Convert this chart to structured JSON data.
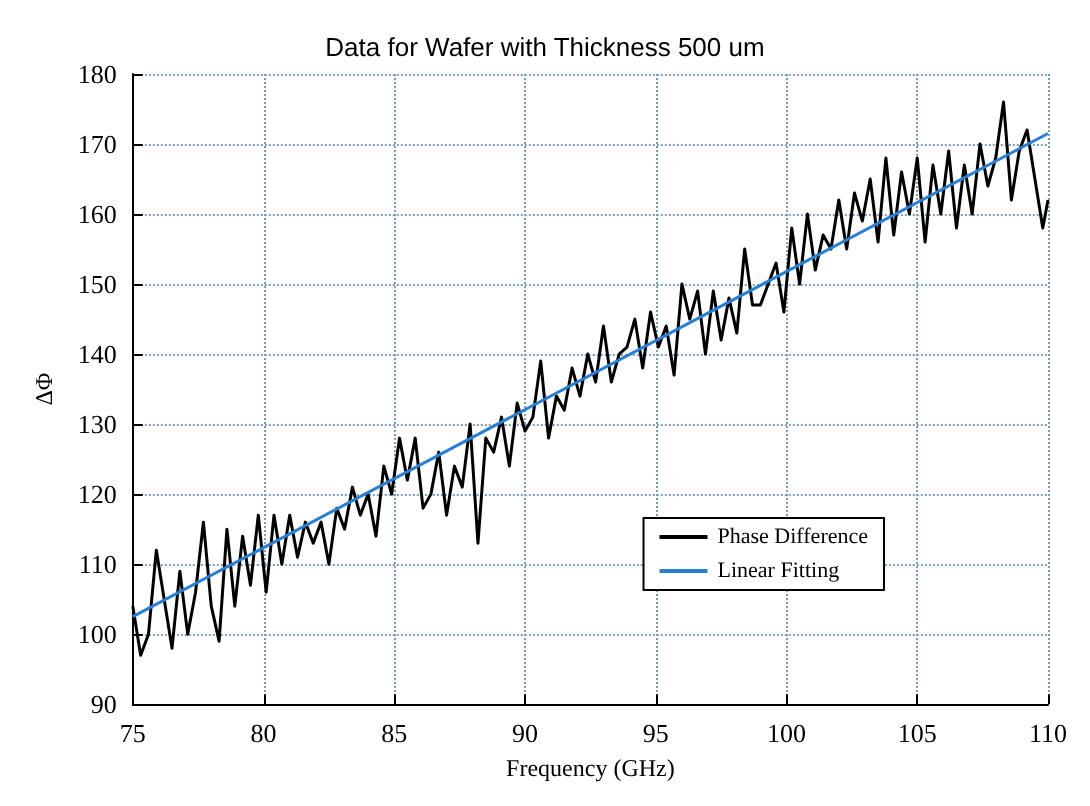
{
  "chart_data": {
    "type": "line",
    "title": "Data for Wafer with Thickness 500 um",
    "xlabel": "Frequency (GHz)",
    "ylabel": "ΔΦ",
    "xlim": [
      75,
      110
    ],
    "xticks": [
      75,
      80,
      85,
      90,
      95,
      100,
      105,
      110
    ],
    "ylim": [
      90,
      180
    ],
    "yticks": [
      90,
      100,
      110,
      120,
      130,
      140,
      150,
      160,
      170,
      180
    ],
    "grid": true,
    "legend": "bottom right",
    "series": [
      {
        "name": "Phase Difference",
        "color": "#000000",
        "x": [
          75.0,
          75.3,
          75.6,
          75.9,
          76.2,
          76.5,
          76.8,
          77.1,
          77.4,
          77.7,
          78.0,
          78.3,
          78.6,
          78.9,
          79.2,
          79.5,
          79.8,
          80.1,
          80.4,
          80.7,
          81.0,
          81.3,
          81.6,
          81.9,
          82.2,
          82.5,
          82.8,
          83.1,
          83.4,
          83.7,
          84.0,
          84.3,
          84.6,
          84.9,
          85.2,
          85.5,
          85.8,
          86.1,
          86.4,
          86.7,
          87.0,
          87.3,
          87.6,
          87.9,
          88.2,
          88.5,
          88.8,
          89.1,
          89.4,
          89.7,
          90.0,
          90.3,
          90.6,
          90.9,
          91.2,
          91.5,
          91.8,
          92.1,
          92.4,
          92.7,
          93.0,
          93.3,
          93.6,
          93.9,
          94.2,
          94.5,
          94.8,
          95.1,
          95.4,
          95.7,
          96.0,
          96.3,
          96.6,
          96.9,
          97.2,
          97.5,
          97.8,
          98.1,
          98.4,
          98.7,
          99.0,
          99.3,
          99.6,
          99.9,
          100.2,
          100.5,
          100.8,
          101.1,
          101.4,
          101.7,
          102.0,
          102.3,
          102.6,
          102.9,
          103.2,
          103.5,
          103.8,
          104.1,
          104.4,
          104.7,
          105.0,
          105.3,
          105.6,
          105.9,
          106.2,
          106.5,
          106.8,
          107.1,
          107.4,
          107.7,
          108.0,
          108.3,
          108.6,
          108.9,
          109.2,
          109.5,
          109.8,
          110.0
        ],
        "values": [
          104,
          97,
          100,
          112,
          105,
          98,
          109,
          100,
          106,
          116,
          104,
          99,
          115,
          104,
          114,
          107,
          117,
          106,
          117,
          110,
          117,
          111,
          116,
          113,
          116,
          110,
          118,
          115,
          121,
          117,
          120,
          114,
          124,
          120,
          128,
          122,
          128,
          118,
          120,
          126,
          117,
          124,
          121,
          130,
          113,
          128,
          126,
          131,
          124,
          133,
          129,
          131,
          139,
          128,
          134,
          132,
          138,
          134,
          140,
          136,
          144,
          136,
          140,
          141,
          145,
          138,
          146,
          141,
          144,
          137,
          150,
          145,
          149,
          140,
          149,
          142,
          148,
          143,
          155,
          147,
          147,
          150,
          153,
          146,
          158,
          150,
          160,
          152,
          157,
          155,
          162,
          155,
          163,
          159,
          165,
          156,
          168,
          157,
          166,
          160,
          168,
          156,
          167,
          160,
          169,
          158,
          167,
          160,
          170,
          164,
          168,
          176,
          162,
          169,
          172,
          165,
          158,
          162
        ]
      },
      {
        "name": "Linear Fitting",
        "color": "#2a7fd4",
        "x": [
          75,
          110
        ],
        "values": [
          102.5,
          171.5
        ]
      }
    ]
  }
}
